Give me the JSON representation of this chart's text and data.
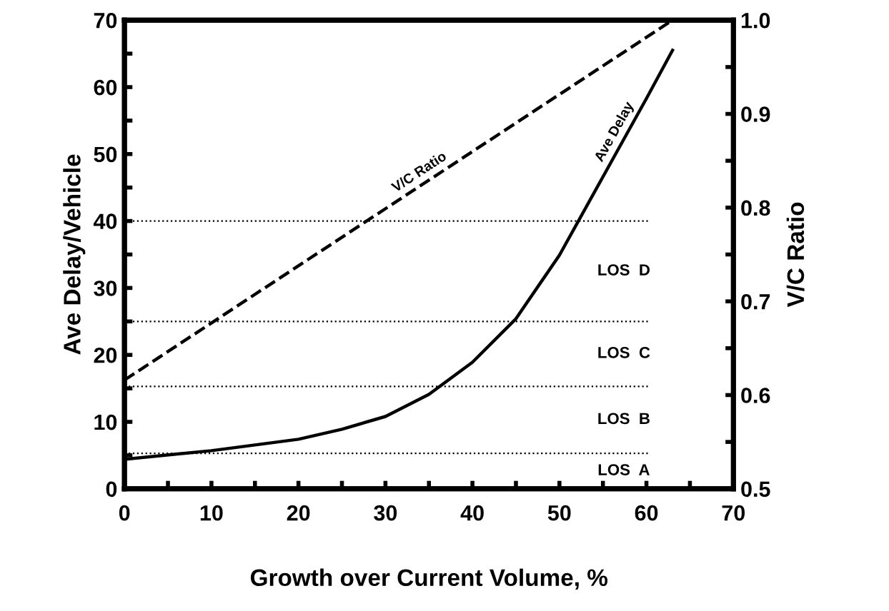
{
  "chart_data": {
    "type": "line",
    "xlabel": "Growth over Current Volume, %",
    "ylabel": "Ave Delay/Vehicle",
    "y2label": "V/C Ratio",
    "xlim": [
      0,
      70
    ],
    "xticks": [
      0,
      10,
      20,
      30,
      40,
      50,
      60,
      70
    ],
    "ylim": [
      0,
      70
    ],
    "yticks": [
      0,
      10,
      20,
      30,
      40,
      50,
      60,
      70
    ],
    "y2lim": [
      0.5,
      1.0
    ],
    "y2ticks": [
      {
        "value": 0.5,
        "label": "0.5"
      },
      {
        "value": 0.6,
        "label": "0.6"
      },
      {
        "value": 0.7,
        "label": "0.7"
      },
      {
        "value": 0.8,
        "label": "0.8"
      },
      {
        "value": 0.9,
        "label": "0.9"
      },
      {
        "value": 1.0,
        "label": "1.0"
      }
    ],
    "series": [
      {
        "name": "Ave Delay",
        "color": "#000000",
        "line_style": "solid",
        "x": [
          0,
          10,
          20,
          25,
          30,
          35,
          40,
          45,
          50,
          55,
          60,
          63
        ],
        "values": [
          4.4,
          5.7,
          7.4,
          8.9,
          10.8,
          14.1,
          18.9,
          25.4,
          34.9,
          46.6,
          58.3,
          65.5
        ]
      },
      {
        "name": "V/C Ratio",
        "color": "#000000",
        "line_style": "dashed",
        "axis": "y2",
        "x": [
          0,
          63
        ],
        "values": [
          0.616,
          1.0
        ]
      }
    ],
    "ref_lines": [
      {
        "axis": "y",
        "value": 5.3,
        "line_style": "dotted"
      },
      {
        "axis": "y",
        "value": 15.3,
        "line_style": "dotted"
      },
      {
        "axis": "y",
        "value": 25,
        "line_style": "dotted"
      },
      {
        "axis": "y",
        "value": 40,
        "line_style": "dotted"
      }
    ],
    "annotations": [
      "LOS  A",
      "LOS  B",
      "LOS  C",
      "LOS  D"
    ],
    "grid": false,
    "legend": false
  }
}
